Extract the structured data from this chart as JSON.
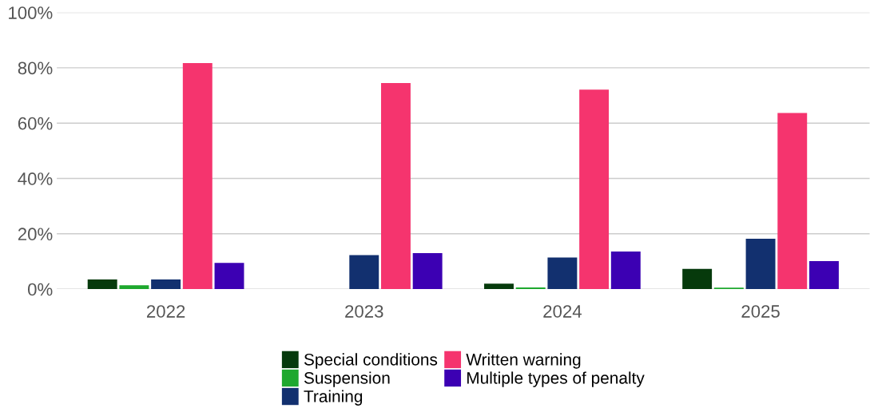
{
  "chart_data": {
    "type": "bar",
    "categories": [
      "2022",
      "2023",
      "2024",
      "2025"
    ],
    "series": [
      {
        "name": "Special conditions",
        "color": "#063a0c",
        "values": [
          3.5,
          null,
          2.0,
          7.3
        ]
      },
      {
        "name": "Suspension",
        "color": "#1ea82e",
        "values": [
          1.4,
          null,
          0.6,
          0.5
        ]
      },
      {
        "name": "Training",
        "color": "#12306f",
        "values": [
          3.5,
          12.3,
          11.4,
          18.2
        ]
      },
      {
        "name": "Written warning",
        "color": "#f5346e",
        "values": [
          81.7,
          74.5,
          72.1,
          63.7
        ]
      },
      {
        "name": "Multiple types of penalty",
        "color": "#3c00b3",
        "values": [
          9.5,
          13.0,
          13.6,
          10.1
        ]
      }
    ],
    "ylim": [
      0,
      100
    ],
    "yticks": [
      {
        "value": 0,
        "label": "0%"
      },
      {
        "value": 20,
        "label": "20%"
      },
      {
        "value": 40,
        "label": "40%"
      },
      {
        "value": 60,
        "label": "60%"
      },
      {
        "value": 80,
        "label": "80%"
      },
      {
        "value": 100,
        "label": "100%"
      }
    ],
    "grid": "y",
    "legend": "bottom"
  }
}
